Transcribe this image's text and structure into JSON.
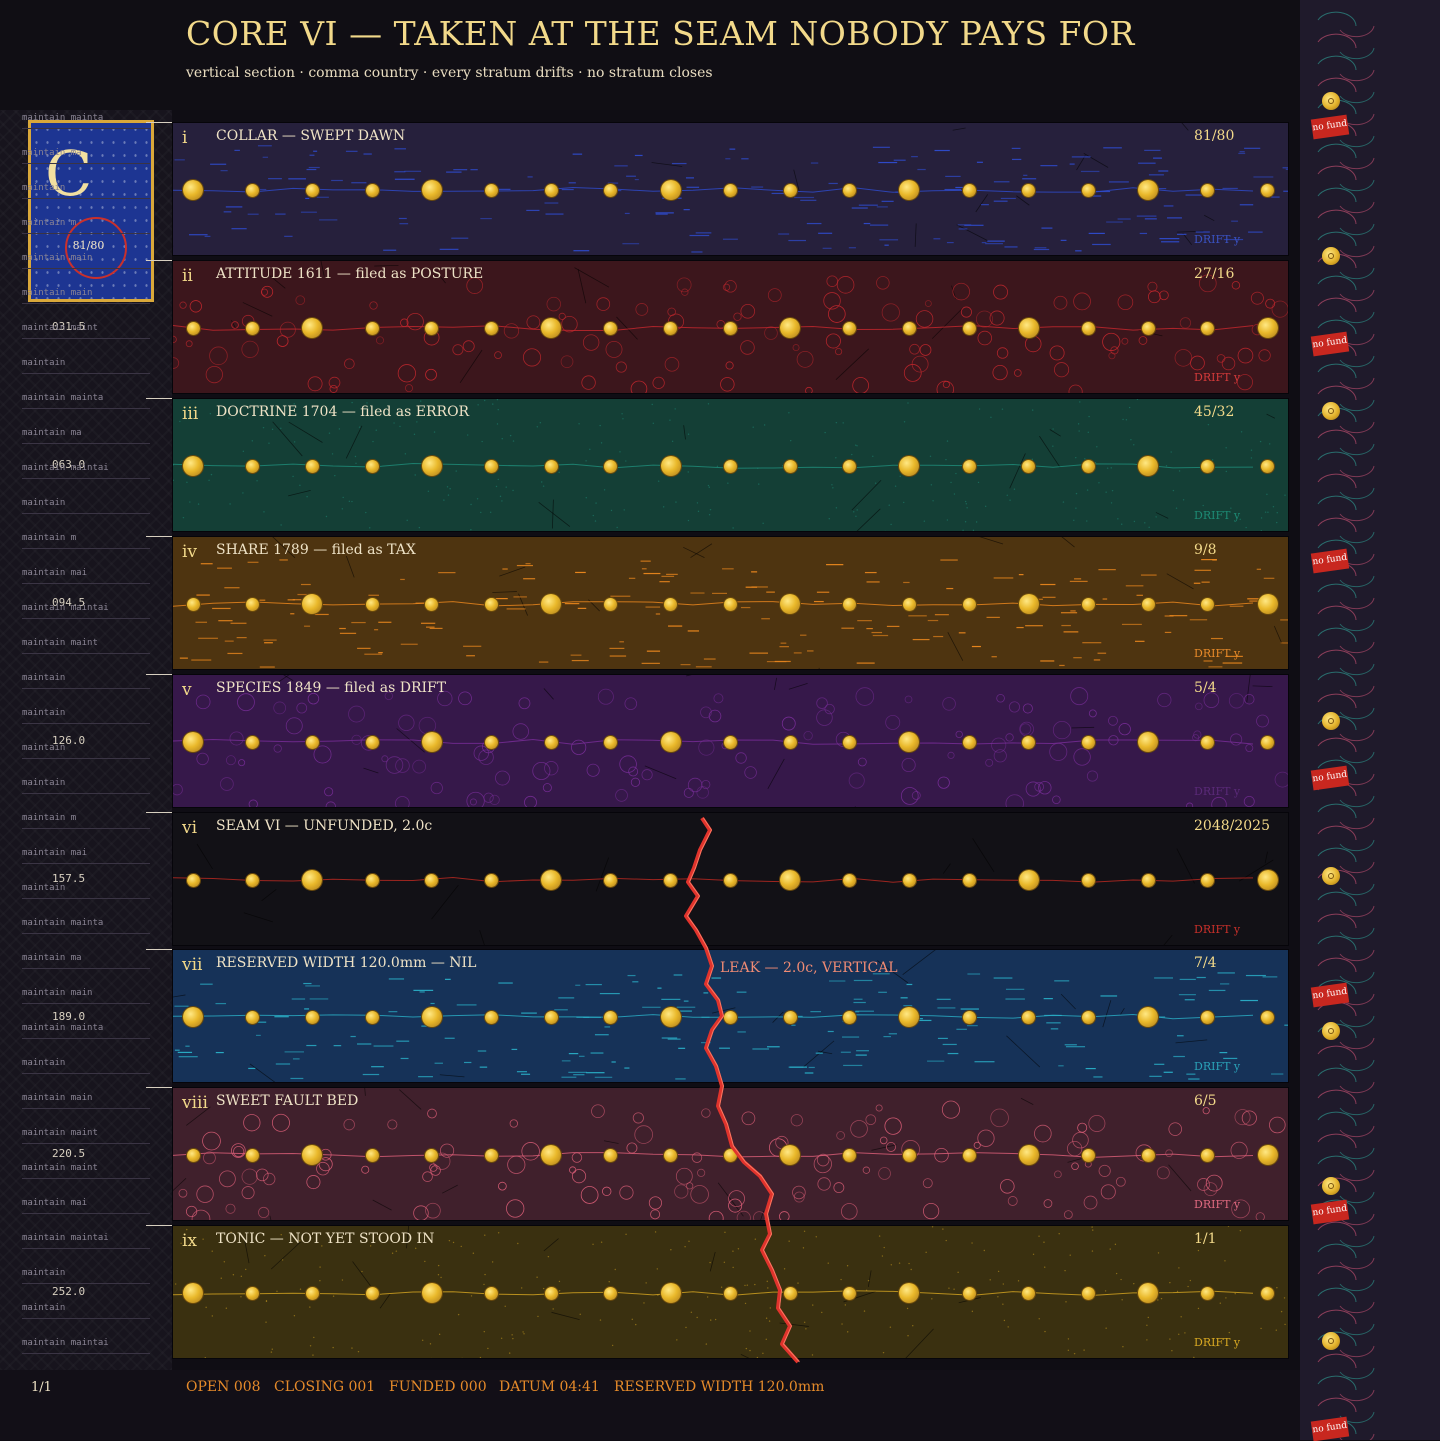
{
  "header": {
    "title": "CORE VI — TAKEN AT THE SEAM NOBODY PAYS FOR",
    "subtitle": "vertical section · comma country · every stratum drifts · no stratum closes"
  },
  "card": {
    "letter": "C",
    "ratio": "81/80"
  },
  "depths": [
    "031.5",
    "063.0",
    "094.5",
    "126.0",
    "157.5",
    "189.0",
    "220.5",
    "252.0"
  ],
  "ledger": [
    "maintain  mainta",
    "maintain  ma",
    "maintain",
    "maintain  m",
    "maintain  main",
    "maintain  main",
    "maintain  maint",
    "maintain",
    "maintain  mainta",
    "maintain  ma",
    "maintain  maintai",
    "maintain",
    "maintain  m",
    "maintain  mai",
    "maintain  maintai",
    "maintain  maint",
    "maintain",
    "maintain",
    "maintain",
    "maintain",
    "maintain  m",
    "maintain  mai",
    "maintain",
    "maintain  mainta",
    "maintain  ma",
    "maintain  main",
    "maintain  mainta",
    "maintain",
    "maintain  main",
    "maintain  maint",
    "maintain  maint",
    "maintain  mai",
    "maintain  maintai",
    "maintain",
    "maintain",
    "maintain  maintai"
  ],
  "strata": [
    {
      "roman": "i",
      "label": "COLLAR — SWEPT DAWN",
      "ratio": "81/80",
      "drift": "DRIFT y",
      "bg": "#26203c",
      "accent": "#2f4cd0",
      "driftColor": "#3a52c2",
      "texture": "dashes"
    },
    {
      "roman": "ii",
      "label": "ATTITUDE 1611 — filed as POSTURE",
      "ratio": "27/16",
      "drift": "DRIFT y",
      "bg": "#3c161c",
      "accent": "#c8282e",
      "driftColor": "#d33a3a",
      "texture": "circles"
    },
    {
      "roman": "iii",
      "label": "DOCTRINE 1704 — filed as ERROR",
      "ratio": "45/32",
      "drift": "DRIFT y",
      "bg": "#143f36",
      "accent": "#1f8f7c",
      "driftColor": "#1d8a74",
      "texture": "grain"
    },
    {
      "roman": "iv",
      "label": "SHARE 1789 — filed as TAX",
      "ratio": "9/8",
      "drift": "DRIFT y",
      "bg": "#4e3410",
      "accent": "#f08a1e",
      "driftColor": "#e88a2a",
      "texture": "dashes"
    },
    {
      "roman": "v",
      "label": "SPECIES 1849 — filed as DRIFT",
      "ratio": "5/4",
      "drift": "DRIFT y",
      "bg": "#36184a",
      "accent": "#7a2e9a",
      "driftColor": "#5a2a78",
      "texture": "circles"
    },
    {
      "roman": "vi",
      "label": "SEAM VI — UNFUNDED, 2.0c",
      "ratio": "2048/2025",
      "drift": "DRIFT y",
      "bg": "#121116",
      "accent": "#c02a22",
      "driftColor": "#c8302a",
      "texture": "none"
    },
    {
      "roman": "vii",
      "label": "RESERVED WIDTH 120.0mm — NIL",
      "ratio": "7/4",
      "drift": "DRIFT y",
      "bg": "#163258",
      "accent": "#2ab0c8",
      "driftColor": "#2aa2b8",
      "texture": "dashes"
    },
    {
      "roman": "viii",
      "label": "SWEET FAULT BED",
      "ratio": "6/5",
      "drift": "DRIFT y",
      "bg": "#40202c",
      "accent": "#e0607a",
      "driftColor": "#e06a80",
      "texture": "circles"
    },
    {
      "roman": "ix",
      "label": "TONIC — NOT YET STOOD IN",
      "ratio": "1/1",
      "drift": "DRIFT y",
      "bg": "#3a3010",
      "accent": "#d8a822",
      "driftColor": "#d8a822",
      "texture": "grain"
    }
  ],
  "leak": {
    "label": "LEAK — 2.0c, VERTICAL"
  },
  "footer": {
    "page": "1/1",
    "items": [
      "OPEN 008",
      "CLOSING 001",
      "FUNDED 000",
      "DATUM 04:41",
      "RESERVED WIDTH 120.0mm"
    ]
  },
  "margin": {
    "nofund": "no fund"
  },
  "colors": {
    "gold": "#e9b82a",
    "leak": "#e0332c"
  }
}
